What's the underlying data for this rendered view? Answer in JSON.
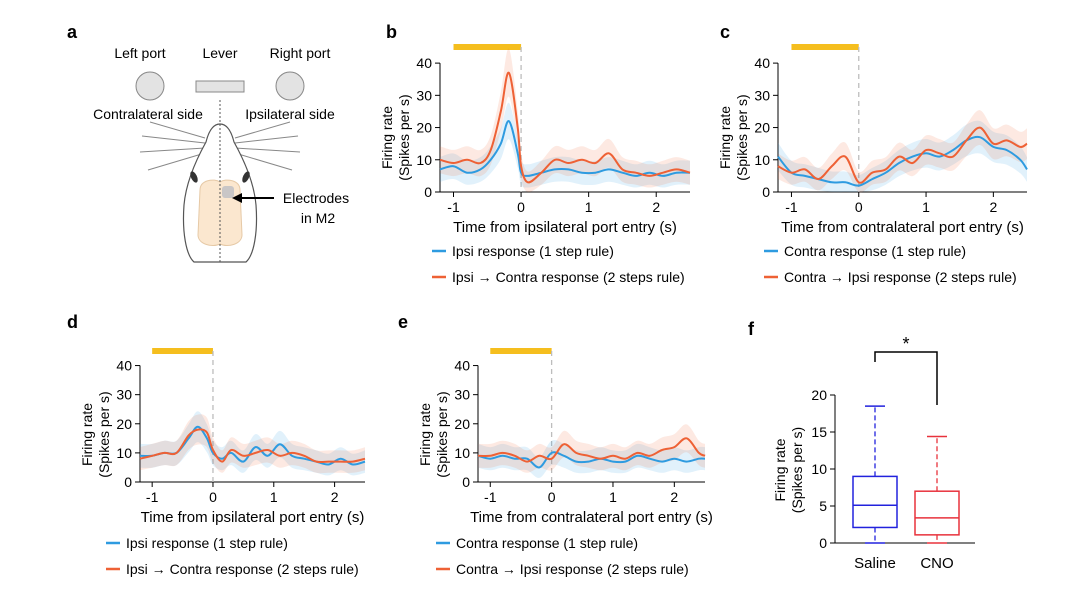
{
  "colors": {
    "blue": "#2e9be0",
    "orange": "#ee6135",
    "bar": "#f5be1e",
    "grid": "#bdbdbd",
    "saline": "#2222dd",
    "cno": "#e8323c"
  },
  "panel_labels": {
    "a": "a",
    "b": "b",
    "c": "c",
    "d": "d",
    "e": "e",
    "f": "f"
  },
  "diagram": {
    "left_port": "Left port",
    "lever": "Lever",
    "right_port": "Right port",
    "contralateral": "Contralateral side",
    "ipsilateral": "Ipsilateral side",
    "electrodes_line1": "Electrodes",
    "electrodes_line2": "in M2"
  },
  "chart_data": [
    {
      "id": "b",
      "type": "line",
      "ylabel": [
        "Firing rate",
        "(Spikes per s)"
      ],
      "xlabel": "Time from ipsilateral port entry (s)",
      "xlim": [
        -1.2,
        2.5
      ],
      "ylim": [
        0,
        45
      ],
      "xticks": [
        -1,
        0,
        1,
        2
      ],
      "yticks": [
        0,
        10,
        20,
        30,
        40
      ],
      "xtick_labels": [
        "-1",
        "0",
        "1",
        "2"
      ],
      "ytick_labels": [
        "0",
        "10",
        "20",
        "30",
        "40"
      ],
      "bar": [
        -1.0,
        0.0
      ],
      "series": [
        {
          "name": "Ipsi response (1 step rule)",
          "color": "blue",
          "x": [
            -1.2,
            -1.0,
            -0.8,
            -0.6,
            -0.45,
            -0.3,
            -0.18,
            -0.05,
            0.0,
            0.1,
            0.3,
            0.5,
            0.7,
            0.9,
            1.1,
            1.3,
            1.5,
            1.7,
            1.9,
            2.1,
            2.3,
            2.5
          ],
          "y": [
            7,
            8,
            6,
            7,
            10,
            15,
            22,
            12,
            6,
            5,
            6,
            7,
            7,
            6,
            6,
            7,
            6,
            5,
            6,
            5,
            6,
            6
          ]
        },
        {
          "name": "Ipsi → Contra response (2 steps rule)",
          "color": "orange",
          "x": [
            -1.2,
            -1.0,
            -0.8,
            -0.6,
            -0.45,
            -0.3,
            -0.18,
            -0.05,
            0.0,
            0.1,
            0.3,
            0.5,
            0.7,
            0.9,
            1.1,
            1.3,
            1.5,
            1.7,
            1.9,
            2.1,
            2.3,
            2.5
          ],
          "y": [
            10,
            9,
            10,
            9,
            13,
            25,
            37,
            20,
            8,
            3,
            6,
            10,
            9,
            10,
            9,
            12,
            7,
            6,
            5,
            6,
            7,
            6
          ]
        }
      ]
    },
    {
      "id": "c",
      "type": "line",
      "ylabel": [
        "Firing rate",
        "(Spikes per s)"
      ],
      "xlabel": "Time from contralateral port entry (s)",
      "xlim": [
        -1.2,
        2.5
      ],
      "ylim": [
        0,
        45
      ],
      "xticks": [
        -1,
        0,
        1,
        2
      ],
      "yticks": [
        0,
        10,
        20,
        30,
        40
      ],
      "xtick_labels": [
        "-1",
        "0",
        "1",
        "2"
      ],
      "ytick_labels": [
        "0",
        "10",
        "20",
        "30",
        "40"
      ],
      "bar": [
        -1.0,
        0.0
      ],
      "series": [
        {
          "name": "Contra response (1 step rule)",
          "color": "blue",
          "x": [
            -1.2,
            -1.0,
            -0.8,
            -0.6,
            -0.4,
            -0.2,
            0.0,
            0.2,
            0.4,
            0.6,
            0.8,
            1.0,
            1.2,
            1.4,
            1.6,
            1.8,
            2.0,
            2.2,
            2.4,
            2.5
          ],
          "y": [
            11,
            6,
            5,
            4,
            3,
            3,
            2,
            4,
            6,
            9,
            11,
            12,
            11,
            13,
            16,
            17,
            14,
            13,
            10,
            7
          ]
        },
        {
          "name": "Contra → Ipsi response (2 steps rule)",
          "color": "orange",
          "x": [
            -1.2,
            -1.0,
            -0.8,
            -0.6,
            -0.4,
            -0.2,
            0.0,
            0.2,
            0.4,
            0.6,
            0.8,
            1.0,
            1.2,
            1.4,
            1.6,
            1.8,
            2.0,
            2.2,
            2.4,
            2.5
          ],
          "y": [
            8,
            6,
            7,
            4,
            8,
            11,
            3,
            6,
            7,
            11,
            9,
            13,
            12,
            11,
            16,
            20,
            15,
            16,
            14,
            15
          ]
        }
      ]
    },
    {
      "id": "d",
      "type": "line",
      "ylabel": [
        "Firing rate",
        "(Spikes per s)"
      ],
      "xlabel": "Time from ipsilateral port entry (s)",
      "xlim": [
        -1.2,
        2.5
      ],
      "ylim": [
        0,
        45
      ],
      "xticks": [
        -1,
        0,
        1,
        2
      ],
      "yticks": [
        0,
        10,
        20,
        30,
        40
      ],
      "xtick_labels": [
        "-1",
        "0",
        "1",
        "2"
      ],
      "ytick_labels": [
        "0",
        "10",
        "20",
        "30",
        "40"
      ],
      "bar": [
        -1.0,
        0.0
      ],
      "series": [
        {
          "name": "Ipsi response (1 step rule)",
          "color": "blue",
          "x": [
            -1.2,
            -1.0,
            -0.8,
            -0.6,
            -0.4,
            -0.25,
            -0.1,
            0.0,
            0.15,
            0.3,
            0.5,
            0.7,
            0.9,
            1.1,
            1.3,
            1.5,
            1.7,
            1.9,
            2.1,
            2.3,
            2.5
          ],
          "y": [
            9,
            9,
            10,
            10,
            15,
            19,
            15,
            10,
            8,
            10,
            7,
            12,
            9,
            13,
            9,
            8,
            7,
            6,
            8,
            6,
            7
          ]
        },
        {
          "name": "Ipsi → Contra response (2 steps rule)",
          "color": "orange",
          "x": [
            -1.2,
            -1.0,
            -0.8,
            -0.6,
            -0.4,
            -0.25,
            -0.1,
            0.0,
            0.15,
            0.3,
            0.5,
            0.7,
            0.9,
            1.1,
            1.3,
            1.5,
            1.7,
            1.9,
            2.1,
            2.3,
            2.5
          ],
          "y": [
            8,
            9,
            10,
            10,
            16,
            18,
            17,
            11,
            7,
            11,
            9,
            10,
            11,
            9,
            10,
            9,
            7,
            7,
            7,
            7,
            8
          ]
        }
      ]
    },
    {
      "id": "e",
      "type": "line",
      "ylabel": [
        "Firing rate",
        "(Spikes per s)"
      ],
      "xlabel": "Time from contralateral port entry (s)",
      "xlim": [
        -1.2,
        2.5
      ],
      "ylim": [
        0,
        45
      ],
      "xticks": [
        -1,
        0,
        1,
        2
      ],
      "yticks": [
        0,
        10,
        20,
        30,
        40
      ],
      "xtick_labels": [
        "-1",
        "0",
        "1",
        "2"
      ],
      "ytick_labels": [
        "0",
        "10",
        "20",
        "30",
        "40"
      ],
      "bar": [
        -1.0,
        0.0
      ],
      "series": [
        {
          "name": "Contra response (1 step rule)",
          "color": "blue",
          "x": [
            -1.2,
            -1.0,
            -0.8,
            -0.6,
            -0.4,
            -0.2,
            0.0,
            0.2,
            0.4,
            0.6,
            0.8,
            1.0,
            1.2,
            1.4,
            1.6,
            1.8,
            2.0,
            2.2,
            2.4,
            2.5
          ],
          "y": [
            9,
            8,
            9,
            8,
            8,
            5,
            10,
            9,
            7,
            7,
            8,
            7,
            7,
            9,
            8,
            7,
            8,
            7,
            8,
            8
          ]
        },
        {
          "name": "Contra → Ipsi response (2 steps rule)",
          "color": "orange",
          "x": [
            -1.2,
            -1.0,
            -0.8,
            -0.6,
            -0.4,
            -0.2,
            0.0,
            0.2,
            0.4,
            0.6,
            0.8,
            1.0,
            1.2,
            1.4,
            1.6,
            1.8,
            2.0,
            2.2,
            2.4,
            2.5
          ],
          "y": [
            9,
            9,
            10,
            9,
            7,
            9,
            8,
            13,
            10,
            9,
            8,
            9,
            8,
            10,
            9,
            11,
            12,
            15,
            10,
            9
          ]
        }
      ]
    },
    {
      "id": "f",
      "type": "box",
      "ylabel": [
        "Firing rate",
        "(Spikes per s)"
      ],
      "ylim": [
        0,
        20
      ],
      "yticks": [
        0,
        5,
        10,
        15,
        20
      ],
      "ytick_labels": [
        "0",
        "5",
        "10",
        "15",
        "20"
      ],
      "significance": "*",
      "categories": [
        "Saline",
        "CNO"
      ],
      "boxes": [
        {
          "label": "Saline",
          "color": "saline",
          "min": 0,
          "q1": 2.1,
          "median": 5.1,
          "q3": 9.0,
          "max": 18.5
        },
        {
          "label": "CNO",
          "color": "cno",
          "min": 0,
          "q1": 1.1,
          "median": 3.4,
          "q3": 7.0,
          "max": 14.4
        }
      ]
    }
  ]
}
